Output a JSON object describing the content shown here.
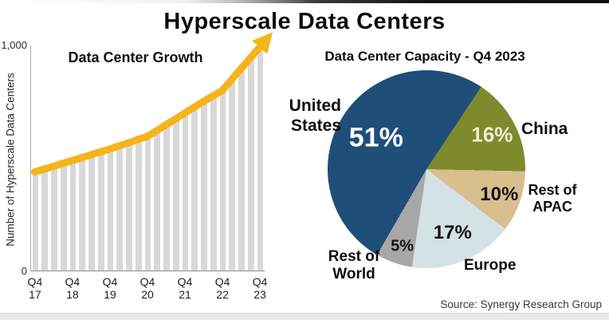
{
  "page": {
    "title": "Hyperscale Data Centers",
    "source": "Source: Synergy Research Group"
  },
  "chart_data": [
    {
      "type": "bar",
      "title": "Data Center Growth",
      "ylabel": "Number of Hyperscale Data Centers",
      "ylim": [
        0,
        1000
      ],
      "ytick_labels": [
        "1,000",
        "0"
      ],
      "x_tick_labels": [
        "Q4\n17",
        "Q4\n18",
        "Q4\n19",
        "Q4\n20",
        "Q4\n21",
        "Q4\n22",
        "Q4\n23"
      ],
      "x_note": "quarterly bars, Q4 2017 through Q4 2023",
      "values": [
        440,
        452,
        465,
        478,
        490,
        503,
        516,
        529,
        541,
        555,
        569,
        583,
        597,
        622,
        648,
        674,
        700,
        726,
        752,
        776,
        800,
        848,
        896,
        944,
        992
      ],
      "bar_color": "#D8D8D8",
      "arrow_color": "#F5B41A",
      "grid": false
    },
    {
      "type": "pie",
      "title": "Data Center Capacity - Q4 2023",
      "start_angle_deg": 210,
      "legend_position": "labels around pie",
      "slices": [
        {
          "label": "United States",
          "value": 51,
          "pct_label": "51%",
          "color": "#1F4E79",
          "pct_color": "#FFFFFF"
        },
        {
          "label": "China",
          "value": 16,
          "pct_label": "16%",
          "color": "#7D8B2D",
          "pct_color": "#F0EFD4"
        },
        {
          "label": "Rest of APAC",
          "value": 10,
          "pct_label": "10%",
          "color": "#D9BE8E",
          "pct_color": "#141414"
        },
        {
          "label": "Europe",
          "value": 17,
          "pct_label": "17%",
          "color": "#D3E2E4",
          "pct_color": "#141414"
        },
        {
          "label": "Rest of World",
          "value": 5,
          "pct_label": "5%",
          "color": "#A7A7A7",
          "pct_color": "#141414"
        }
      ]
    }
  ]
}
